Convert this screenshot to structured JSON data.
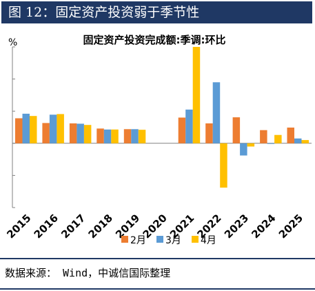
{
  "header": {
    "title": "图 12：固定资产投资弱于季节性"
  },
  "source": "数据来源： Wind，中诚信国际整理",
  "colors": {
    "header_bg": "#1f3864",
    "s1": "#ed7d31",
    "s2": "#5b9bd5",
    "s3": "#ffc000",
    "axis": "#808080"
  },
  "chart_data": {
    "type": "bar",
    "title": "固定资产投资完成额:季调:环比",
    "ylabel": "%",
    "xlabel": "",
    "ylim": [
      -2,
      3
    ],
    "grid": false,
    "legend_position": "bottom",
    "categories": [
      "2015",
      "2016",
      "2017",
      "2018",
      "2019",
      "2020",
      "2021",
      "2022",
      "2023",
      "2024",
      "2025"
    ],
    "series": [
      {
        "name": "2月",
        "color": "#ed7d31",
        "values": [
          0.78,
          0.63,
          0.62,
          0.46,
          0.44,
          null,
          0.8,
          0.62,
          0.81,
          0.41,
          0.49
        ]
      },
      {
        "name": "3月",
        "color": "#5b9bd5",
        "values": [
          0.92,
          0.89,
          0.61,
          0.43,
          0.44,
          null,
          1.05,
          1.9,
          -0.38,
          -0.02,
          0.15
        ]
      },
      {
        "name": "4月",
        "color": "#ffc000",
        "values": [
          0.85,
          0.91,
          0.57,
          0.43,
          0.42,
          null,
          3.0,
          -1.38,
          -0.1,
          0.26,
          0.1
        ]
      }
    ]
  }
}
